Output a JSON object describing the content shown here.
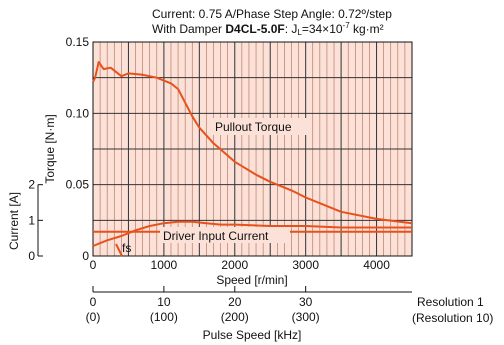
{
  "header": {
    "line1": "Current: 0.75 A/Phase   Step Angle: 0.72º/step",
    "line2_prefix": "With Damper ",
    "line2_bold": "D4CL-5.0F",
    "line2_suffix": ": J",
    "line2_sub": "L",
    "line2_value": "=34×10",
    "line2_exp": "-7",
    "line2_unit": " kg·m²"
  },
  "chart_data": {
    "type": "line",
    "title": "Current: 0.75 A/Phase   Step Angle: 0.72º/step; With Damper D4CL-5.0F: JL=34×10-7 kg·m²",
    "xlabel": "Speed [r/min]",
    "ylabel": "Torque [N·m]",
    "xlim": [
      0,
      4500
    ],
    "ylim": [
      0,
      0.15
    ],
    "x_ticks": [
      "0",
      "1000",
      "2000",
      "3000",
      "4000"
    ],
    "y_ticks": [
      "0",
      "0.05",
      "0.10",
      "0.15"
    ],
    "grid": true,
    "series": [
      {
        "name": "Pullout Torque",
        "x": [
          0,
          30,
          80,
          150,
          250,
          400,
          500,
          700,
          900,
          1100,
          1200,
          1400,
          1500,
          1700,
          2000,
          2300,
          2500,
          2800,
          3000,
          3300,
          3500,
          4000,
          4500
        ],
        "y": [
          0.122,
          0.125,
          0.136,
          0.131,
          0.132,
          0.126,
          0.128,
          0.127,
          0.125,
          0.121,
          0.117,
          0.098,
          0.09,
          0.079,
          0.066,
          0.057,
          0.052,
          0.046,
          0.041,
          0.035,
          0.031,
          0.026,
          0.023
        ]
      },
      {
        "name": "Driver Input Current",
        "x": [
          0,
          200,
          400,
          600,
          800,
          1000,
          1200,
          1400,
          1600,
          1800,
          2000,
          2500,
          3000,
          3500,
          4000,
          4500
        ],
        "y": [
          0.007,
          0.011,
          0.014,
          0.018,
          0.021,
          0.023,
          0.024,
          0.024,
          0.023,
          0.022,
          0.022,
          0.021,
          0.021,
          0.02,
          0.02,
          0.02
        ]
      },
      {
        "name": "Driver Input Current",
        "x": [
          0,
          500,
          1000,
          1500,
          2000,
          2500,
          3000,
          3500,
          4000,
          4500
        ],
        "y": [
          0.017,
          0.017,
          0.017,
          0.017,
          0.017,
          0.017,
          0.017,
          0.017,
          0.017,
          0.017
        ]
      }
    ],
    "secondary_axis": {
      "label": "Current [A]",
      "ticks": [
        "0",
        "1",
        "2"
      ]
    },
    "annotations": [
      {
        "text": "Pullout Torque"
      },
      {
        "text": "Driver Input Current"
      },
      {
        "text": "fs"
      }
    ],
    "pulse_axis": {
      "label": "Pulse Speed [kHz]",
      "ticks_resolution1": [
        "0",
        "10",
        "20",
        "30"
      ],
      "ticks_resolution10": [
        "(0)",
        "(100)",
        "(200)",
        "(300)"
      ],
      "legend_resolution1": "Resolution 1",
      "legend_resolution10": "(Resolution 10)"
    }
  }
}
